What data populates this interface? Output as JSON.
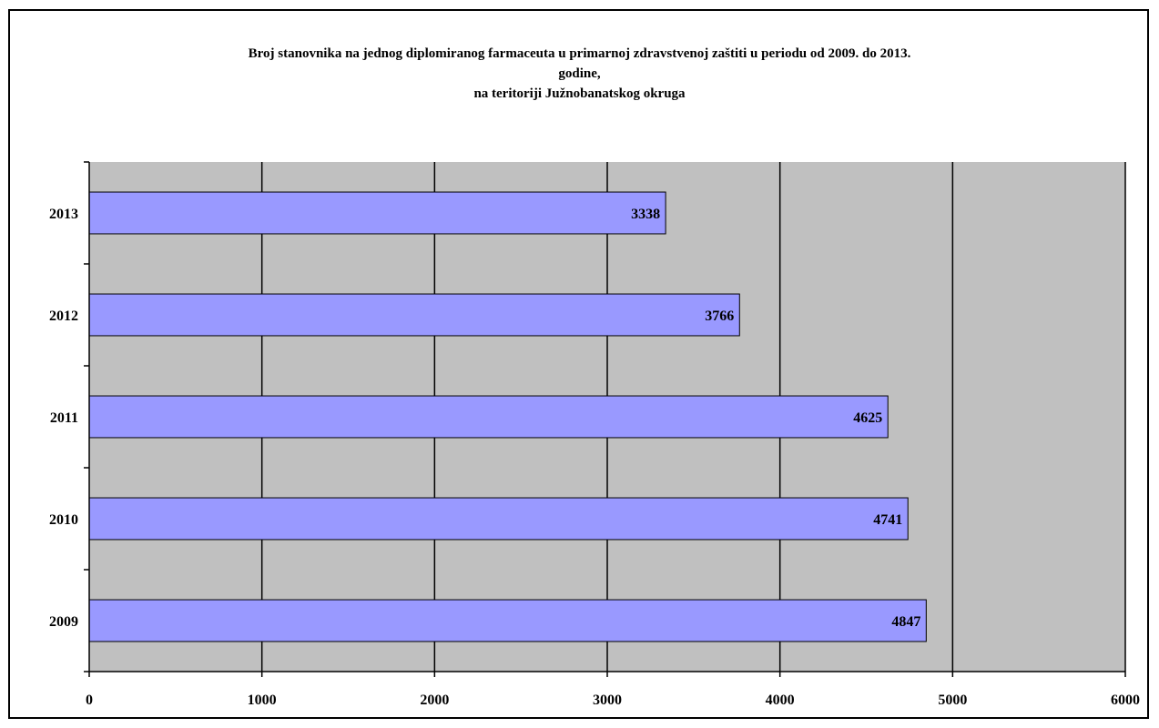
{
  "chart_data": {
    "type": "bar",
    "orientation": "horizontal",
    "title_lines": [
      "Broj stanovnika na jednog diplomiranog farmaceuta u primarnoj zdravstvenoj zaštiti u periodu od 2009. do 2013.",
      "godine,",
      "na teritoriji Južnobanatskog okruga"
    ],
    "categories": [
      "2009",
      "2010",
      "2011",
      "2012",
      "2013"
    ],
    "values": [
      4847,
      4741,
      4625,
      3766,
      3338
    ],
    "xlim": [
      0,
      6000
    ],
    "x_ticks": [
      0,
      1000,
      2000,
      3000,
      4000,
      5000,
      6000
    ],
    "grid": "vertical",
    "legend": "none",
    "colors": {
      "bar_fill": "#9999ff",
      "bar_stroke": "#000000",
      "plot_background": "#c0c0c0",
      "gridline": "#000000"
    }
  }
}
